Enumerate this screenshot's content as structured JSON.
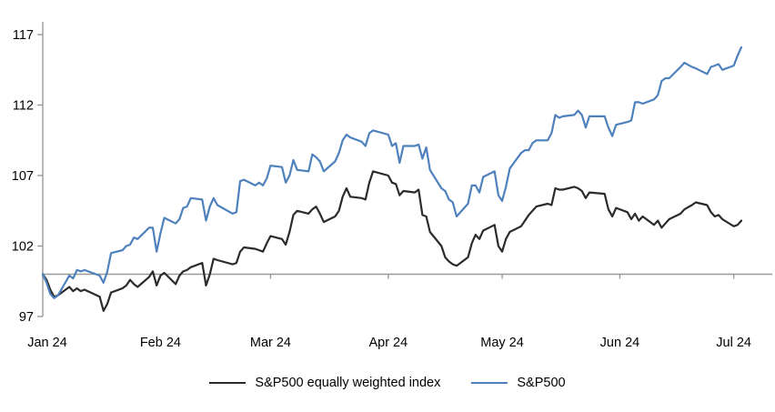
{
  "chart_data": {
    "type": "line",
    "title": "",
    "xlabel": "",
    "ylabel": "",
    "x_unit": "trading days Jan 2024 - early Jul 2024, indexed to 100",
    "x_tick_labels": [
      "Jan 24",
      "Feb 24",
      "Mar 24",
      "Apr 24",
      "May 24",
      "Jun 24",
      "Jul 24"
    ],
    "x_tick_days": [
      0,
      31,
      60,
      91,
      121,
      152,
      182
    ],
    "y_ticks": [
      97,
      102,
      107,
      112,
      117
    ],
    "ylim": [
      97,
      117.6
    ],
    "baseline_value": 100,
    "grid": false,
    "legend_position": "bottom-center",
    "axis_color": "#9a9a9a",
    "days": [
      0,
      1,
      2,
      3,
      4,
      7,
      8,
      9,
      10,
      11,
      15,
      16,
      17,
      18,
      21,
      22,
      23,
      24,
      25,
      28,
      29,
      30,
      31,
      32,
      35,
      36,
      37,
      38,
      39,
      42,
      43,
      44,
      45,
      46,
      50,
      51,
      52,
      53,
      56,
      57,
      58,
      59,
      60,
      63,
      64,
      65,
      66,
      67,
      70,
      71,
      72,
      73,
      74,
      77,
      78,
      79,
      80,
      81,
      84,
      85,
      86,
      87,
      91,
      92,
      93,
      94,
      95,
      98,
      99,
      100,
      101,
      102,
      105,
      106,
      107,
      108,
      109,
      112,
      113,
      114,
      115,
      116,
      119,
      120,
      121,
      122,
      123,
      126,
      127,
      128,
      129,
      130,
      133,
      134,
      135,
      136,
      137,
      140,
      141,
      142,
      143,
      144,
      148,
      149,
      150,
      151,
      154,
      155,
      156,
      157,
      158,
      161,
      162,
      163,
      164,
      165,
      168,
      169,
      171,
      172,
      175,
      176,
      177,
      178,
      179,
      182,
      183,
      184
    ],
    "series": [
      {
        "name": "S&P500 equally weighted index",
        "color": "#2b2b2b",
        "values": [
          100.0,
          99.6,
          98.9,
          98.4,
          98.5,
          99.1,
          98.8,
          99.0,
          98.8,
          98.9,
          98.4,
          97.4,
          97.9,
          98.7,
          99.0,
          99.2,
          99.6,
          99.3,
          99.1,
          99.8,
          100.2,
          99.2,
          99.9,
          100.1,
          99.3,
          99.9,
          100.2,
          100.3,
          100.5,
          100.8,
          99.2,
          100.0,
          101.1,
          101.0,
          100.7,
          100.8,
          101.6,
          101.9,
          101.8,
          101.7,
          101.6,
          102.2,
          102.7,
          102.5,
          102.1,
          103.0,
          104.2,
          104.5,
          104.3,
          104.6,
          104.8,
          104.3,
          103.7,
          104.1,
          104.5,
          105.5,
          106.1,
          105.5,
          105.4,
          105.3,
          106.5,
          107.3,
          107.0,
          106.5,
          106.4,
          105.6,
          105.9,
          105.8,
          106.0,
          104.2,
          104.1,
          103.0,
          102.0,
          101.2,
          100.9,
          100.7,
          100.6,
          101.2,
          102.2,
          102.8,
          102.5,
          103.1,
          103.5,
          102.0,
          101.6,
          102.5,
          103.0,
          103.4,
          103.8,
          104.2,
          104.5,
          104.8,
          105.0,
          104.9,
          106.1,
          106.0,
          106.0,
          106.2,
          106.1,
          105.9,
          105.4,
          105.8,
          105.7,
          104.6,
          104.1,
          104.7,
          104.4,
          103.9,
          104.3,
          103.8,
          104.1,
          103.5,
          103.8,
          103.3,
          103.6,
          103.9,
          104.3,
          104.6,
          104.9,
          105.1,
          104.9,
          104.4,
          104.1,
          104.2,
          103.9,
          103.4,
          103.5,
          103.8
        ]
      },
      {
        "name": "S&P500",
        "color": "#4F81BD",
        "values": [
          100.0,
          99.4,
          98.6,
          98.3,
          98.5,
          99.9,
          99.7,
          100.3,
          100.2,
          100.3,
          99.9,
          99.4,
          100.2,
          101.5,
          101.7,
          102.0,
          102.1,
          102.6,
          102.5,
          103.3,
          103.3,
          101.6,
          102.9,
          104.0,
          103.6,
          103.9,
          104.7,
          104.8,
          105.4,
          105.3,
          103.8,
          104.8,
          105.4,
          104.9,
          104.3,
          104.4,
          106.6,
          106.7,
          106.3,
          106.5,
          106.3,
          106.8,
          107.7,
          107.6,
          106.5,
          107.0,
          108.1,
          107.4,
          107.3,
          108.5,
          108.3,
          108.0,
          107.3,
          108.0,
          108.6,
          109.5,
          109.9,
          109.7,
          109.4,
          109.1,
          110.0,
          110.2,
          109.9,
          109.1,
          109.3,
          107.9,
          109.1,
          109.1,
          109.2,
          108.2,
          109.0,
          107.4,
          106.1,
          105.9,
          105.3,
          105.1,
          104.1,
          105.0,
          106.3,
          106.3,
          105.8,
          106.9,
          107.3,
          105.6,
          105.2,
          106.2,
          107.5,
          108.6,
          108.8,
          108.8,
          109.3,
          109.5,
          109.5,
          110.0,
          111.3,
          111.1,
          111.2,
          111.3,
          111.6,
          111.3,
          110.4,
          111.2,
          111.2,
          110.4,
          109.8,
          110.6,
          110.8,
          110.9,
          112.2,
          112.2,
          112.1,
          112.4,
          112.7,
          113.7,
          113.9,
          113.9,
          114.7,
          115.0,
          114.7,
          114.6,
          114.2,
          114.7,
          114.8,
          114.9,
          114.5,
          114.8,
          115.5,
          116.1
        ]
      }
    ]
  },
  "legend": {
    "items": [
      {
        "label": "S&P500 equally weighted index"
      },
      {
        "label": "S&P500"
      }
    ]
  }
}
